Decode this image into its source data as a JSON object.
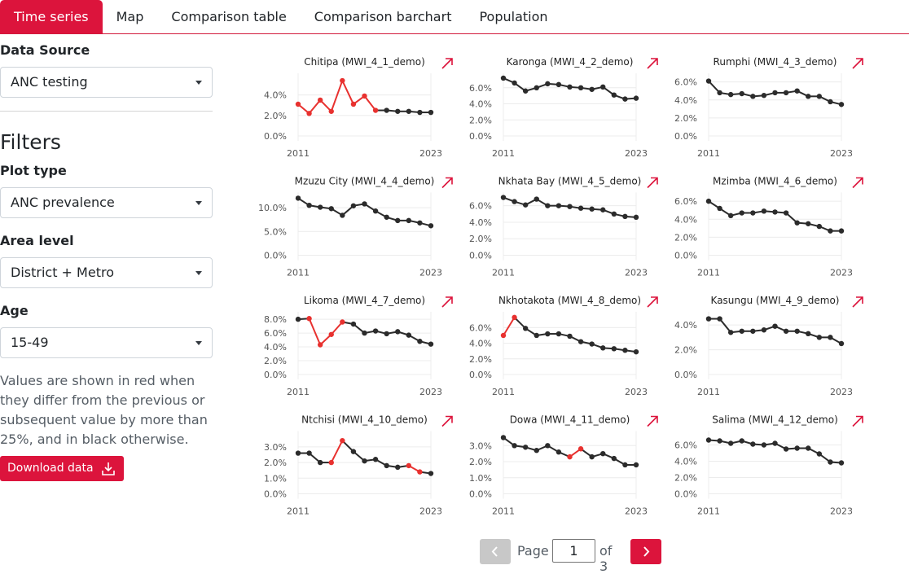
{
  "tabs": [
    {
      "label": "Time series",
      "active": true
    },
    {
      "label": "Map",
      "active": false
    },
    {
      "label": "Comparison table",
      "active": false
    },
    {
      "label": "Comparison barchart",
      "active": false
    },
    {
      "label": "Population",
      "active": false
    }
  ],
  "sidebar": {
    "data_source_label": "Data Source",
    "data_source_value": "ANC testing",
    "filters_title": "Filters",
    "plot_type_label": "Plot type",
    "plot_type_value": "ANC prevalence",
    "area_level_label": "Area level",
    "area_level_value": "District + Metro",
    "age_label": "Age",
    "age_value": "15-49",
    "note": "Values are shown in red when they differ from the previous or subsequent value by more than 25%, and in black otherwise.",
    "download_label": "Download data"
  },
  "pager": {
    "page_label": "Page",
    "page_value": "1",
    "of_label": "of 3"
  },
  "colors": {
    "accent": "#dc143c",
    "highlight": "#e8312f",
    "normal": "#2b2b2b"
  },
  "chart_data": [
    {
      "type": "line",
      "title": "Chitipa (MWI_4_1_demo)",
      "x": [
        2011,
        2012,
        2013,
        2014,
        2015,
        2016,
        2017,
        2018,
        2019,
        2020,
        2021,
        2022,
        2023
      ],
      "yticks": [
        "0.0%",
        "2.0%",
        "4.0%"
      ],
      "ylim": [
        0,
        5.8
      ],
      "xticks": [
        "2011",
        "2023"
      ],
      "values": [
        3.1,
        2.2,
        3.5,
        2.4,
        5.4,
        3.1,
        3.9,
        2.5,
        2.5,
        2.4,
        2.4,
        2.3,
        2.3
      ],
      "red": [
        true,
        true,
        true,
        true,
        true,
        true,
        true,
        true,
        false,
        false,
        false,
        false,
        false
      ]
    },
    {
      "type": "line",
      "title": "Karonga (MWI_4_2_demo)",
      "x": [
        2011,
        2012,
        2013,
        2014,
        2015,
        2016,
        2017,
        2018,
        2019,
        2020,
        2021,
        2022,
        2023
      ],
      "yticks": [
        "0.0%",
        "2.0%",
        "4.0%",
        "6.0%"
      ],
      "ylim": [
        0,
        7.4
      ],
      "xticks": [
        "2011",
        "2023"
      ],
      "values": [
        7.2,
        6.6,
        5.6,
        6.0,
        6.5,
        6.4,
        6.1,
        6.0,
        5.8,
        6.1,
        5.1,
        4.6,
        4.7
      ],
      "red": [
        false,
        false,
        false,
        false,
        false,
        false,
        false,
        false,
        false,
        false,
        false,
        false,
        false
      ]
    },
    {
      "type": "line",
      "title": "Rumphi (MWI_4_3_demo)",
      "x": [
        2011,
        2012,
        2013,
        2014,
        2015,
        2016,
        2017,
        2018,
        2019,
        2020,
        2021,
        2022,
        2023
      ],
      "yticks": [
        "0.0%",
        "2.0%",
        "4.0%",
        "6.0%"
      ],
      "ylim": [
        0,
        6.6
      ],
      "xticks": [
        "2011",
        "2023"
      ],
      "values": [
        6.1,
        4.8,
        4.6,
        4.7,
        4.4,
        4.5,
        4.8,
        4.8,
        5.0,
        4.4,
        4.4,
        3.8,
        3.5
      ],
      "red": [
        false,
        false,
        false,
        false,
        false,
        false,
        false,
        false,
        false,
        false,
        false,
        false,
        false
      ]
    },
    {
      "type": "line",
      "title": "Mzuzu City (MWI_4_4_demo)",
      "x": [
        2011,
        2012,
        2013,
        2014,
        2015,
        2016,
        2017,
        2018,
        2019,
        2020,
        2021,
        2022,
        2023
      ],
      "yticks": [
        "0.0%",
        "5.0%",
        "10.0%"
      ],
      "ylim": [
        0,
        12.5
      ],
      "xticks": [
        "2011",
        "2023"
      ],
      "values": [
        12.0,
        10.5,
        10.1,
        9.8,
        8.4,
        10.4,
        10.8,
        9.3,
        8.0,
        7.3,
        7.3,
        6.8,
        6.2
      ],
      "red": [
        false,
        false,
        false,
        false,
        false,
        false,
        false,
        false,
        false,
        false,
        false,
        false,
        false
      ]
    },
    {
      "type": "line",
      "title": "Nkhata Bay (MWI_4_5_demo)",
      "x": [
        2011,
        2012,
        2013,
        2014,
        2015,
        2016,
        2017,
        2018,
        2019,
        2020,
        2021,
        2022,
        2023
      ],
      "yticks": [
        "0.0%",
        "2.0%",
        "4.0%",
        "6.0%"
      ],
      "ylim": [
        0,
        7.2
      ],
      "xticks": [
        "2011",
        "2023"
      ],
      "values": [
        7.0,
        6.5,
        6.1,
        6.8,
        6.0,
        6.0,
        5.9,
        5.7,
        5.6,
        5.5,
        5.0,
        4.7,
        4.6
      ],
      "red": [
        false,
        false,
        false,
        false,
        false,
        false,
        false,
        false,
        false,
        false,
        false,
        false,
        false
      ]
    },
    {
      "type": "line",
      "title": "Mzimba (MWI_4_6_demo)",
      "x": [
        2011,
        2012,
        2013,
        2014,
        2015,
        2016,
        2017,
        2018,
        2019,
        2020,
        2021,
        2022,
        2023
      ],
      "yticks": [
        "0.0%",
        "2.0%",
        "4.0%",
        "6.0%"
      ],
      "ylim": [
        0,
        6.6
      ],
      "xticks": [
        "2011",
        "2023"
      ],
      "values": [
        6.0,
        5.2,
        4.4,
        4.7,
        4.7,
        4.9,
        4.8,
        4.7,
        3.6,
        3.5,
        3.2,
        2.7,
        2.7
      ],
      "red": [
        false,
        false,
        false,
        false,
        false,
        false,
        false,
        false,
        false,
        false,
        false,
        false,
        false
      ]
    },
    {
      "type": "line",
      "title": "Likoma (MWI_4_7_demo)",
      "x": [
        2011,
        2012,
        2013,
        2014,
        2015,
        2016,
        2017,
        2018,
        2019,
        2020,
        2021,
        2022,
        2023
      ],
      "yticks": [
        "0.0%",
        "2.0%",
        "4.0%",
        "6.0%",
        "8.0%"
      ],
      "ylim": [
        0,
        8.6
      ],
      "xticks": [
        "2011",
        "2023"
      ],
      "values": [
        8.0,
        8.1,
        4.3,
        5.8,
        7.6,
        7.3,
        6.0,
        6.3,
        5.9,
        6.2,
        5.7,
        4.8,
        4.4
      ],
      "red": [
        false,
        true,
        true,
        true,
        true,
        false,
        false,
        false,
        false,
        false,
        false,
        false,
        false
      ]
    },
    {
      "type": "line",
      "title": "Nkhotakota (MWI_4_8_demo)",
      "x": [
        2011,
        2012,
        2013,
        2014,
        2015,
        2016,
        2017,
        2018,
        2019,
        2020,
        2021,
        2022,
        2023
      ],
      "yticks": [
        "0.0%",
        "2.0%",
        "4.0%",
        "6.0%"
      ],
      "ylim": [
        0,
        7.6
      ],
      "xticks": [
        "2011",
        "2023"
      ],
      "values": [
        5.0,
        7.3,
        5.9,
        5.0,
        5.2,
        5.2,
        4.9,
        4.2,
        3.9,
        3.4,
        3.3,
        3.1,
        2.9
      ],
      "red": [
        true,
        true,
        false,
        false,
        false,
        false,
        false,
        false,
        false,
        false,
        false,
        false,
        false
      ]
    },
    {
      "type": "line",
      "title": "Kasungu (MWI_4_9_demo)",
      "x": [
        2011,
        2012,
        2013,
        2014,
        2015,
        2016,
        2017,
        2018,
        2019,
        2020,
        2021,
        2022,
        2023
      ],
      "yticks": [
        "0.0%",
        "2.0%",
        "4.0%"
      ],
      "ylim": [
        0,
        4.8
      ],
      "xticks": [
        "2011",
        "2023"
      ],
      "values": [
        4.5,
        4.5,
        3.4,
        3.5,
        3.5,
        3.6,
        3.9,
        3.5,
        3.5,
        3.3,
        3.0,
        3.0,
        2.5
      ],
      "red": [
        false,
        false,
        false,
        false,
        false,
        false,
        false,
        false,
        false,
        false,
        false,
        false,
        false
      ]
    },
    {
      "type": "line",
      "title": "Ntchisi (MWI_4_10_demo)",
      "x": [
        2011,
        2012,
        2013,
        2014,
        2015,
        2016,
        2017,
        2018,
        2019,
        2020,
        2021,
        2022,
        2023
      ],
      "yticks": [
        "0.0%",
        "1.0%",
        "2.0%",
        "3.0%"
      ],
      "ylim": [
        0,
        3.8
      ],
      "xticks": [
        "2011",
        "2023"
      ],
      "values": [
        2.6,
        2.6,
        2.0,
        2.0,
        3.4,
        2.7,
        2.1,
        2.2,
        1.8,
        1.7,
        1.8,
        1.4,
        1.3
      ],
      "red": [
        false,
        false,
        false,
        true,
        true,
        false,
        false,
        false,
        false,
        false,
        true,
        true,
        false
      ]
    },
    {
      "type": "line",
      "title": "Dowa (MWI_4_11_demo)",
      "x": [
        2011,
        2012,
        2013,
        2014,
        2015,
        2016,
        2017,
        2018,
        2019,
        2020,
        2021,
        2022,
        2023
      ],
      "yticks": [
        "0.0%",
        "1.0%",
        "2.0%",
        "3.0%"
      ],
      "ylim": [
        0,
        3.7
      ],
      "xticks": [
        "2011",
        "2023"
      ],
      "values": [
        3.5,
        3.0,
        2.9,
        2.7,
        3.0,
        2.6,
        2.3,
        2.8,
        2.3,
        2.5,
        2.2,
        1.8,
        1.8
      ],
      "red": [
        false,
        false,
        false,
        false,
        false,
        false,
        true,
        true,
        false,
        false,
        false,
        false,
        false
      ]
    },
    {
      "type": "line",
      "title": "Salima (MWI_4_12_demo)",
      "x": [
        2011,
        2012,
        2013,
        2014,
        2015,
        2016,
        2017,
        2018,
        2019,
        2020,
        2021,
        2022,
        2023
      ],
      "yticks": [
        "0.0%",
        "2.0%",
        "4.0%",
        "6.0%"
      ],
      "ylim": [
        0,
        7.3
      ],
      "xticks": [
        "2011",
        "2023"
      ],
      "values": [
        6.6,
        6.5,
        6.2,
        6.5,
        6.1,
        6.0,
        6.2,
        5.5,
        5.6,
        5.6,
        4.9,
        3.9,
        3.8
      ],
      "red": [
        false,
        false,
        false,
        false,
        false,
        false,
        false,
        false,
        false,
        false,
        false,
        false,
        false
      ]
    }
  ]
}
